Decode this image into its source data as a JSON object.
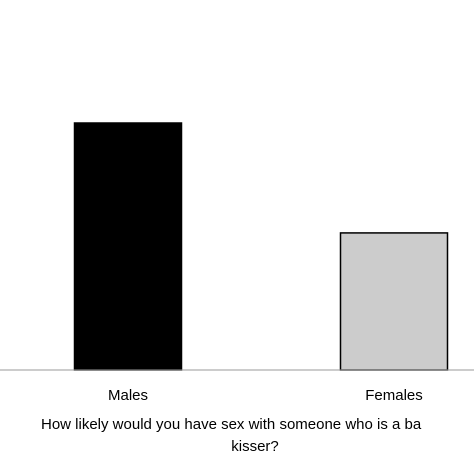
{
  "chart_data": {
    "type": "bar",
    "categories": [
      "Males",
      "Females"
    ],
    "values": [
      2.0,
      1.11
    ],
    "colors": [
      "#000000",
      "#cccccc"
    ],
    "xlabel_lines": [
      "How likely would you have sex with someone who is a ba",
      "kisser?"
    ],
    "ylabel": "",
    "ylim": [
      0,
      2.5
    ],
    "grid": false,
    "legend": "none"
  }
}
